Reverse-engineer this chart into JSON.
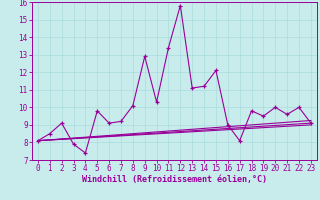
{
  "xlabel": "Windchill (Refroidissement éolien,°C)",
  "background_color": "#c8ecec",
  "line_color": "#990099",
  "xlim": [
    -0.5,
    23.5
  ],
  "ylim": [
    7,
    16
  ],
  "yticks": [
    7,
    8,
    9,
    10,
    11,
    12,
    13,
    14,
    15,
    16
  ],
  "xticks": [
    0,
    1,
    2,
    3,
    4,
    5,
    6,
    7,
    8,
    9,
    10,
    11,
    12,
    13,
    14,
    15,
    16,
    17,
    18,
    19,
    20,
    21,
    22,
    23
  ],
  "main_x": [
    0,
    1,
    2,
    3,
    4,
    5,
    6,
    7,
    8,
    9,
    10,
    11,
    12,
    13,
    14,
    15,
    16,
    17,
    18,
    19,
    20,
    21,
    22,
    23
  ],
  "main_y": [
    8.1,
    8.5,
    9.1,
    7.9,
    7.4,
    9.8,
    9.1,
    9.2,
    10.1,
    12.9,
    10.3,
    13.4,
    15.8,
    11.1,
    11.2,
    12.1,
    9.0,
    8.1,
    9.8,
    9.5,
    10.0,
    9.6,
    10.0,
    9.1
  ],
  "trend1_x": [
    0,
    23
  ],
  "trend1_y": [
    8.1,
    9.0
  ],
  "trend2_x": [
    0,
    23
  ],
  "trend2_y": [
    8.1,
    9.25
  ],
  "trend3_x": [
    0,
    23
  ],
  "trend3_y": [
    8.1,
    9.1
  ],
  "grid_color": "#aadddd",
  "font_size": 5.5,
  "xlabel_fontsize": 6.0
}
